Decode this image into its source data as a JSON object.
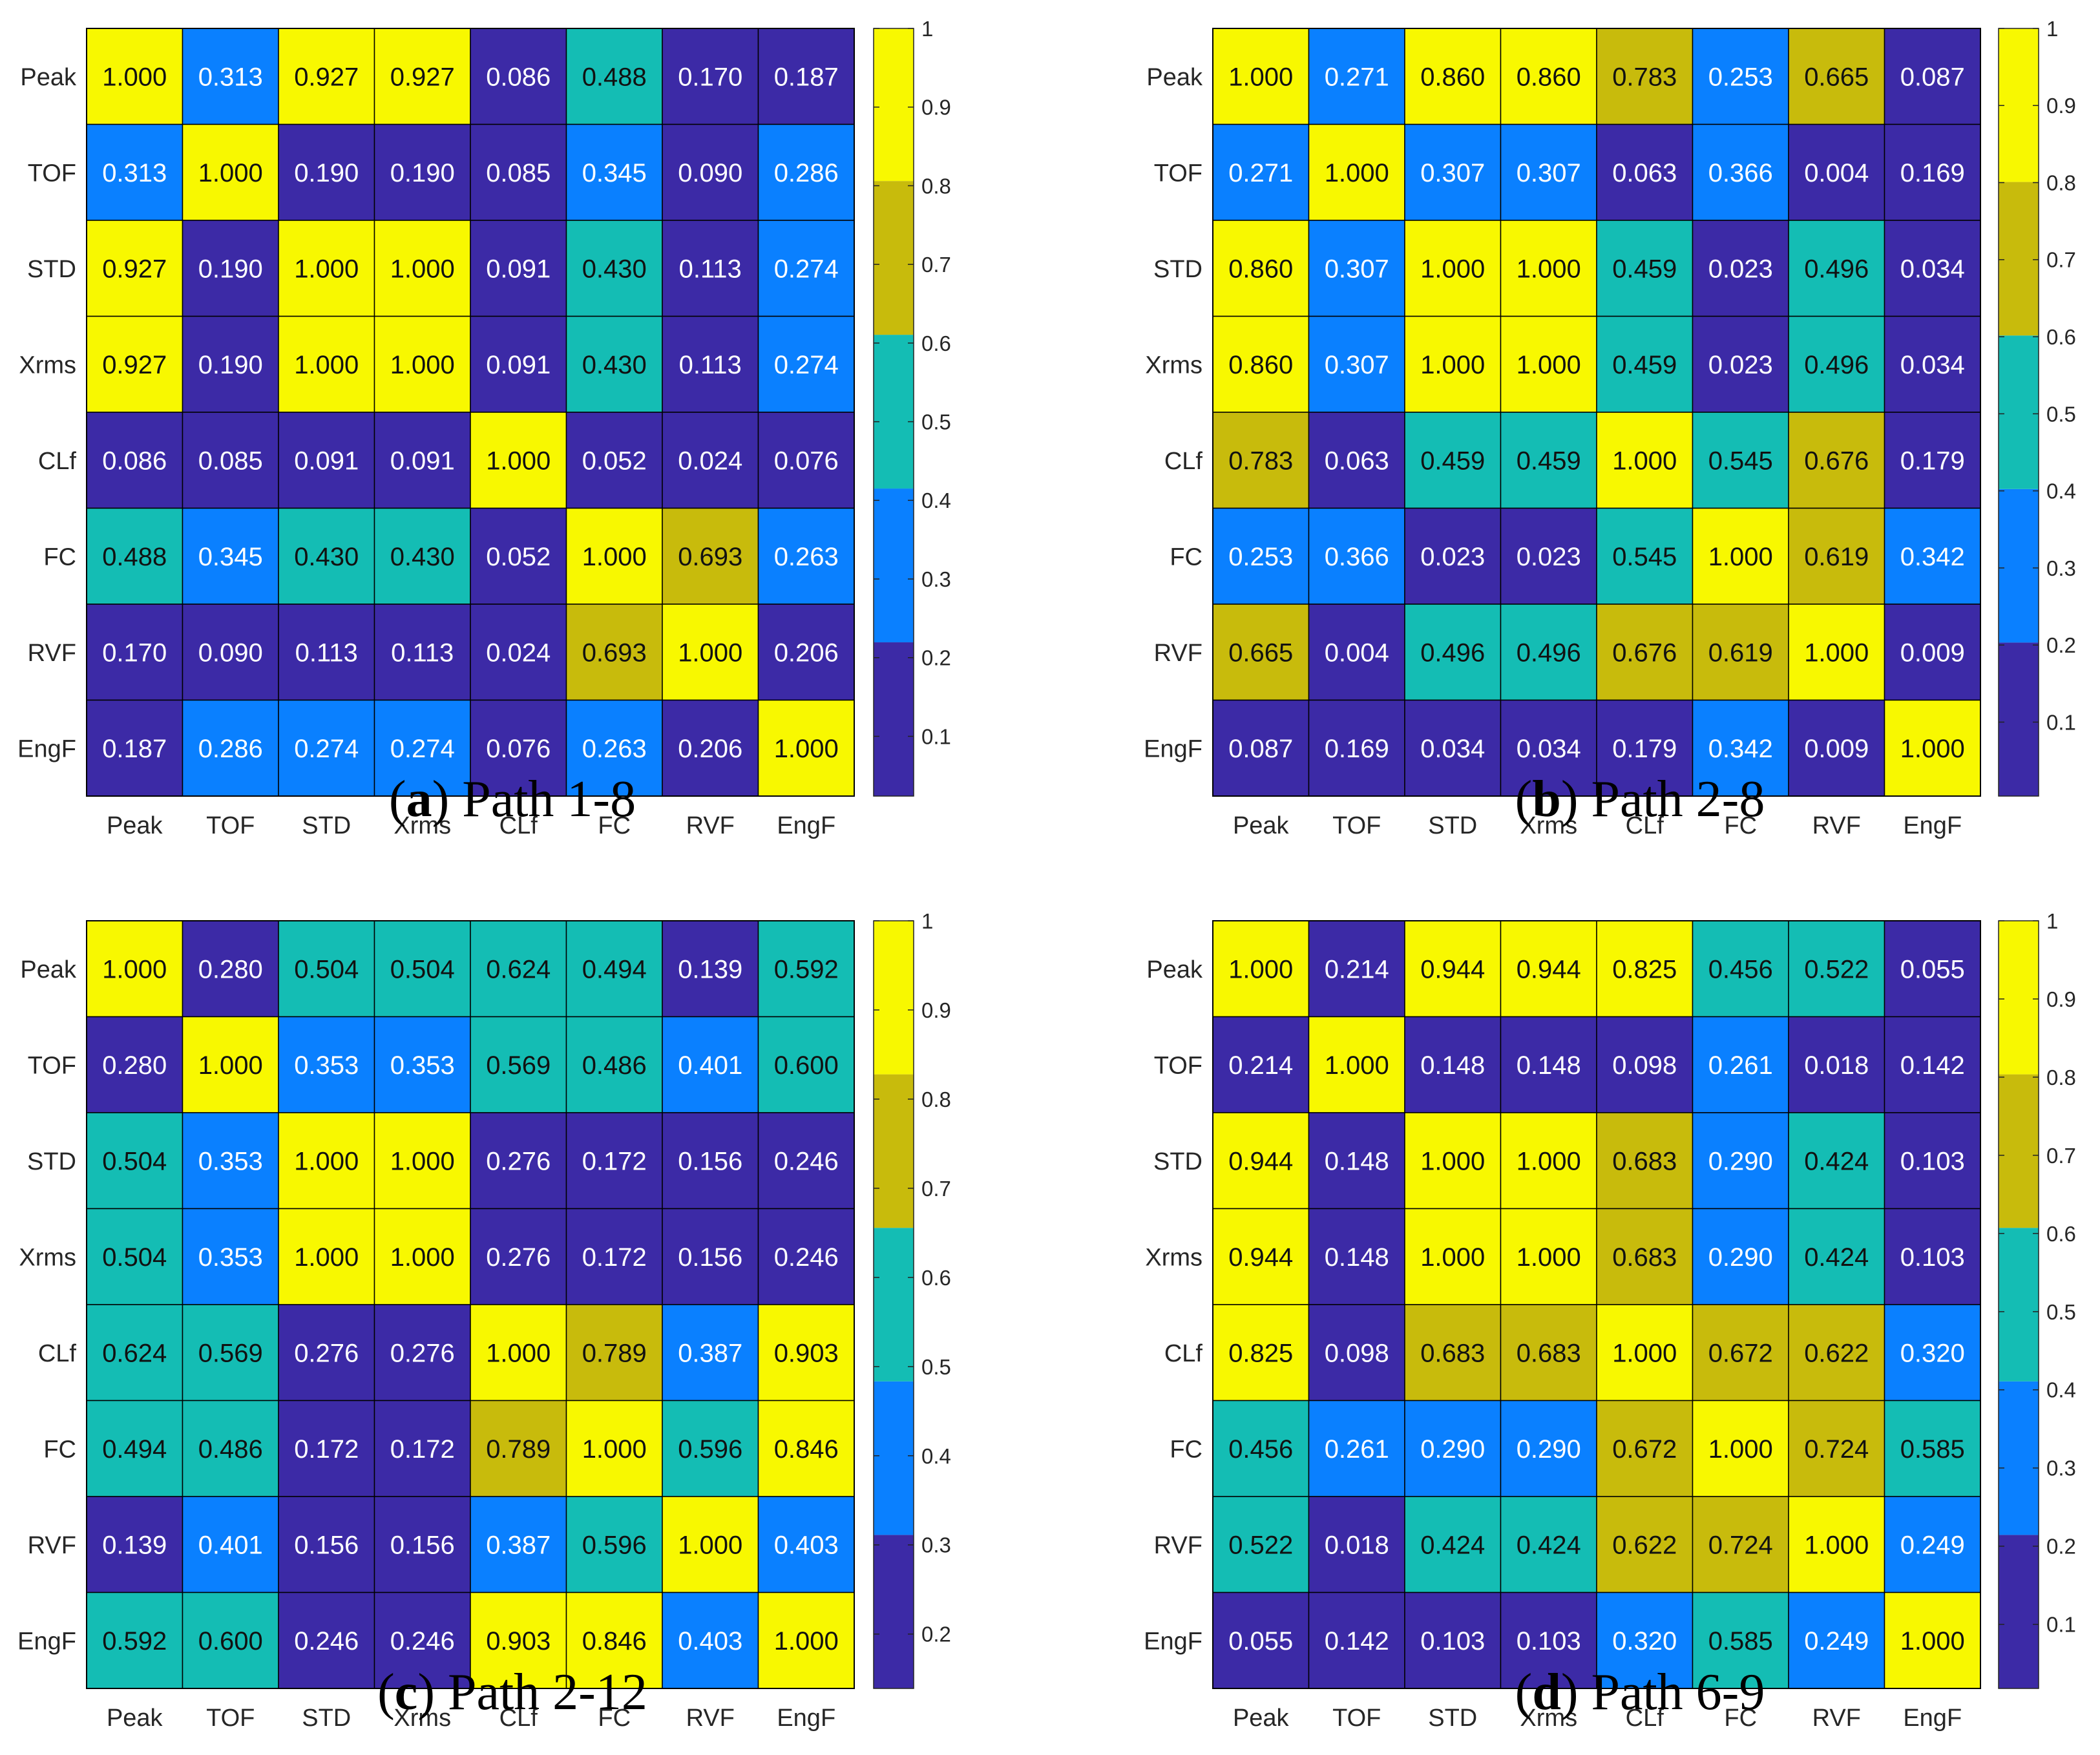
{
  "colors": {
    "bg": "#ffffff",
    "axis_text": "#262626",
    "grid": "#000000",
    "bins": [
      "#3c2aa6",
      "#0a80ff",
      "#14bdb4",
      "#c8bb0c",
      "#f8f800"
    ],
    "text_dark": "#111111",
    "text_light": "#ffffff"
  },
  "chart_data": [
    {
      "type": "heatmap",
      "panel_label": "a",
      "caption_text": "Path 1-8",
      "labels": [
        "Peak",
        "TOF",
        "STD",
        "Xrms",
        "CLf",
        "FC",
        "RVF",
        "EngF"
      ],
      "values": [
        [
          "1.000",
          "0.313",
          "0.927",
          "0.927",
          "0.086",
          "0.488",
          "0.170",
          "0.187"
        ],
        [
          "0.313",
          "1.000",
          "0.190",
          "0.190",
          "0.085",
          "0.345",
          "0.090",
          "0.286"
        ],
        [
          "0.927",
          "0.190",
          "1.000",
          "1.000",
          "0.091",
          "0.430",
          "0.113",
          "0.274"
        ],
        [
          "0.927",
          "0.190",
          "1.000",
          "1.000",
          "0.091",
          "0.430",
          "0.113",
          "0.274"
        ],
        [
          "0.086",
          "0.085",
          "0.091",
          "0.091",
          "1.000",
          "0.052",
          "0.024",
          "0.076"
        ],
        [
          "0.488",
          "0.345",
          "0.430",
          "0.430",
          "0.052",
          "1.000",
          "0.693",
          "0.263"
        ],
        [
          "0.170",
          "0.090",
          "0.113",
          "0.113",
          "0.024",
          "0.693",
          "1.000",
          "0.206"
        ],
        [
          "0.187",
          "0.286",
          "0.274",
          "0.274",
          "0.076",
          "0.263",
          "0.206",
          "1.000"
        ]
      ],
      "colorbar": {
        "range": [
          0.024,
          1.0
        ],
        "bin_edges": [
          0.024,
          0.2195,
          0.415,
          0.6105,
          0.806,
          1.0
        ],
        "ticks": [
          {
            "value": 0.1,
            "label": "0.1"
          },
          {
            "value": 0.2,
            "label": "0.2"
          },
          {
            "value": 0.3,
            "label": "0.3"
          },
          {
            "value": 0.4,
            "label": "0.4"
          },
          {
            "value": 0.5,
            "label": "0.5"
          },
          {
            "value": 0.6,
            "label": "0.6"
          },
          {
            "value": 0.7,
            "label": "0.7"
          },
          {
            "value": 0.8,
            "label": "0.8"
          },
          {
            "value": 0.9,
            "label": "0.9"
          },
          {
            "value": 1.0,
            "label": "1"
          }
        ]
      }
    },
    {
      "type": "heatmap",
      "panel_label": "b",
      "caption_text": "Path 2-8",
      "labels": [
        "Peak",
        "TOF",
        "STD",
        "Xrms",
        "CLf",
        "FC",
        "RVF",
        "EngF"
      ],
      "values": [
        [
          "1.000",
          "0.271",
          "0.860",
          "0.860",
          "0.783",
          "0.253",
          "0.665",
          "0.087"
        ],
        [
          "0.271",
          "1.000",
          "0.307",
          "0.307",
          "0.063",
          "0.366",
          "0.004",
          "0.169"
        ],
        [
          "0.860",
          "0.307",
          "1.000",
          "1.000",
          "0.459",
          "0.023",
          "0.496",
          "0.034"
        ],
        [
          "0.860",
          "0.307",
          "1.000",
          "1.000",
          "0.459",
          "0.023",
          "0.496",
          "0.034"
        ],
        [
          "0.783",
          "0.063",
          "0.459",
          "0.459",
          "1.000",
          "0.545",
          "0.676",
          "0.179"
        ],
        [
          "0.253",
          "0.366",
          "0.023",
          "0.023",
          "0.545",
          "1.000",
          "0.619",
          "0.342"
        ],
        [
          "0.665",
          "0.004",
          "0.496",
          "0.496",
          "0.676",
          "0.619",
          "1.000",
          "0.009"
        ],
        [
          "0.087",
          "0.169",
          "0.034",
          "0.034",
          "0.179",
          "0.342",
          "0.009",
          "1.000"
        ]
      ],
      "colorbar": {
        "range": [
          0.004,
          1.0
        ],
        "bin_edges": [
          0.004,
          0.2032,
          0.4024,
          0.6016,
          0.8008,
          1.0
        ],
        "ticks": [
          {
            "value": 0.1,
            "label": "0.1"
          },
          {
            "value": 0.2,
            "label": "0.2"
          },
          {
            "value": 0.3,
            "label": "0.3"
          },
          {
            "value": 0.4,
            "label": "0.4"
          },
          {
            "value": 0.5,
            "label": "0.5"
          },
          {
            "value": 0.6,
            "label": "0.6"
          },
          {
            "value": 0.7,
            "label": "0.7"
          },
          {
            "value": 0.8,
            "label": "0.8"
          },
          {
            "value": 0.9,
            "label": "0.9"
          },
          {
            "value": 1.0,
            "label": "1"
          }
        ]
      }
    },
    {
      "type": "heatmap",
      "panel_label": "c",
      "caption_text": "Path 2-12",
      "labels": [
        "Peak",
        "TOF",
        "STD",
        "Xrms",
        "CLf",
        "FC",
        "RVF",
        "EngF"
      ],
      "values": [
        [
          "1.000",
          "0.280",
          "0.504",
          "0.504",
          "0.624",
          "0.494",
          "0.139",
          "0.592"
        ],
        [
          "0.280",
          "1.000",
          "0.353",
          "0.353",
          "0.569",
          "0.486",
          "0.401",
          "0.600"
        ],
        [
          "0.504",
          "0.353",
          "1.000",
          "1.000",
          "0.276",
          "0.172",
          "0.156",
          "0.246"
        ],
        [
          "0.504",
          "0.353",
          "1.000",
          "1.000",
          "0.276",
          "0.172",
          "0.156",
          "0.246"
        ],
        [
          "0.624",
          "0.569",
          "0.276",
          "0.276",
          "1.000",
          "0.789",
          "0.387",
          "0.903"
        ],
        [
          "0.494",
          "0.486",
          "0.172",
          "0.172",
          "0.789",
          "1.000",
          "0.596",
          "0.846"
        ],
        [
          "0.139",
          "0.401",
          "0.156",
          "0.156",
          "0.387",
          "0.596",
          "1.000",
          "0.403"
        ],
        [
          "0.592",
          "0.600",
          "0.246",
          "0.246",
          "0.903",
          "0.846",
          "0.403",
          "1.000"
        ]
      ],
      "colorbar": {
        "range": [
          0.139,
          1.0
        ],
        "bin_edges": [
          0.139,
          0.3112,
          0.4834,
          0.6556,
          0.8278,
          1.0
        ],
        "ticks": [
          {
            "value": 0.2,
            "label": "0.2"
          },
          {
            "value": 0.3,
            "label": "0.3"
          },
          {
            "value": 0.4,
            "label": "0.4"
          },
          {
            "value": 0.5,
            "label": "0.5"
          },
          {
            "value": 0.6,
            "label": "0.6"
          },
          {
            "value": 0.7,
            "label": "0.7"
          },
          {
            "value": 0.8,
            "label": "0.8"
          },
          {
            "value": 0.9,
            "label": "0.9"
          },
          {
            "value": 1.0,
            "label": "1"
          }
        ]
      }
    },
    {
      "type": "heatmap",
      "panel_label": "d",
      "caption_text": "Path 6-9",
      "labels": [
        "Peak",
        "TOF",
        "STD",
        "Xrms",
        "CLf",
        "FC",
        "RVF",
        "EngF"
      ],
      "values": [
        [
          "1.000",
          "0.214",
          "0.944",
          "0.944",
          "0.825",
          "0.456",
          "0.522",
          "0.055"
        ],
        [
          "0.214",
          "1.000",
          "0.148",
          "0.148",
          "0.098",
          "0.261",
          "0.018",
          "0.142"
        ],
        [
          "0.944",
          "0.148",
          "1.000",
          "1.000",
          "0.683",
          "0.290",
          "0.424",
          "0.103"
        ],
        [
          "0.944",
          "0.148",
          "1.000",
          "1.000",
          "0.683",
          "0.290",
          "0.424",
          "0.103"
        ],
        [
          "0.825",
          "0.098",
          "0.683",
          "0.683",
          "1.000",
          "0.672",
          "0.622",
          "0.320"
        ],
        [
          "0.456",
          "0.261",
          "0.290",
          "0.290",
          "0.672",
          "1.000",
          "0.724",
          "0.585"
        ],
        [
          "0.522",
          "0.018",
          "0.424",
          "0.424",
          "0.622",
          "0.724",
          "1.000",
          "0.249"
        ],
        [
          "0.055",
          "0.142",
          "0.103",
          "0.103",
          "0.320",
          "0.585",
          "0.249",
          "1.000"
        ]
      ],
      "colorbar": {
        "range": [
          0.018,
          1.0
        ],
        "bin_edges": [
          0.018,
          0.2144,
          0.4108,
          0.6072,
          0.8036,
          1.0
        ],
        "ticks": [
          {
            "value": 0.1,
            "label": "0.1"
          },
          {
            "value": 0.2,
            "label": "0.2"
          },
          {
            "value": 0.3,
            "label": "0.3"
          },
          {
            "value": 0.4,
            "label": "0.4"
          },
          {
            "value": 0.5,
            "label": "0.5"
          },
          {
            "value": 0.6,
            "label": "0.6"
          },
          {
            "value": 0.7,
            "label": "0.7"
          },
          {
            "value": 0.8,
            "label": "0.8"
          },
          {
            "value": 0.9,
            "label": "0.9"
          },
          {
            "value": 1.0,
            "label": "1"
          }
        ]
      }
    }
  ]
}
